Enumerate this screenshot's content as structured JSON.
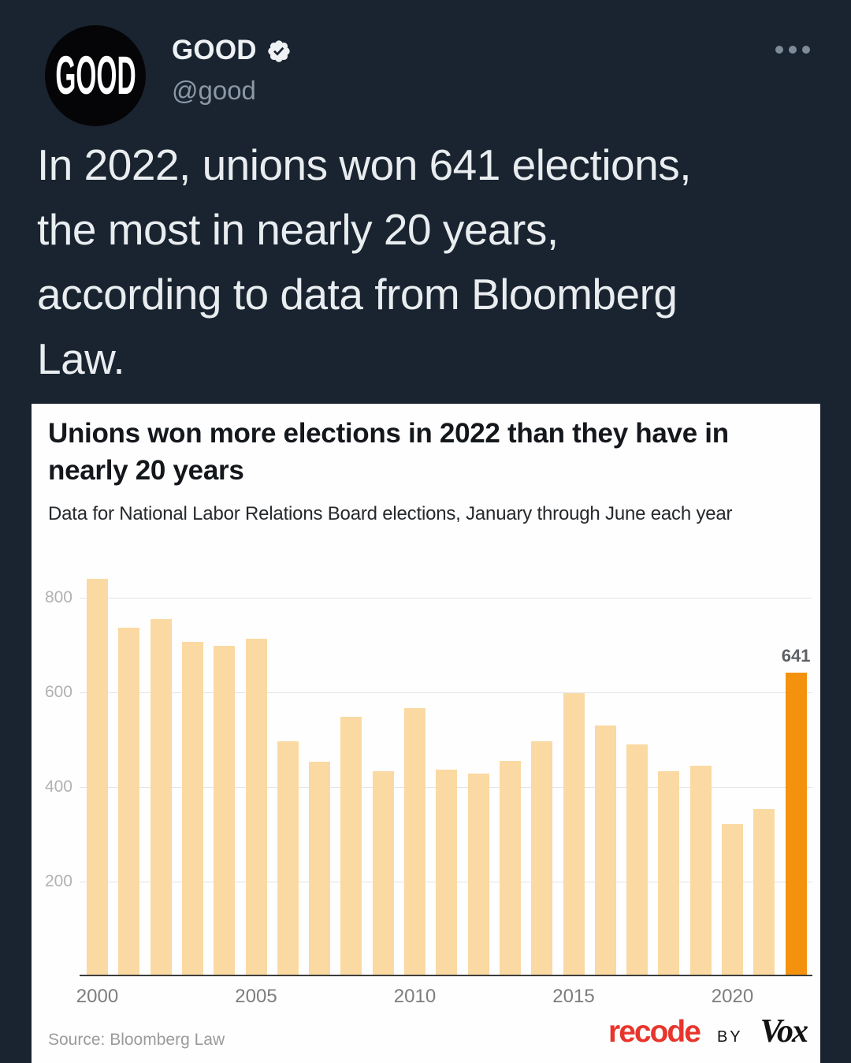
{
  "header": {
    "avatar_text": "GOOD",
    "display_name": "GOOD",
    "handle": "@good"
  },
  "tweet": {
    "lines": [
      "In 2022, unions won 641 elections,",
      "the most in nearly 20 years,",
      "according to data from Bloomberg",
      "Law."
    ]
  },
  "chart": {
    "title_lines": [
      "Unions won more elections in 2022 than they have in",
      "nearly 20 years"
    ],
    "subtitle": "Data for National Labor Relations Board elections, January through June each year",
    "source": "Source: Bloomberg Law",
    "logo_recode": "recode",
    "logo_by": "BY",
    "logo_vox": "Vox"
  },
  "chart_data": {
    "type": "bar",
    "title": "Unions won more elections in 2022 than they have in nearly 20 years",
    "subtitle": "Data for National Labor Relations Board elections, January through June each year",
    "source": "Source: Bloomberg Law",
    "categories": [
      "2000",
      "2001",
      "2002",
      "2003",
      "2004",
      "2005",
      "2006",
      "2007",
      "2008",
      "2009",
      "2010",
      "2011",
      "2012",
      "2013",
      "2014",
      "2015",
      "2016",
      "2017",
      "2018",
      "2019",
      "2020",
      "2021",
      "2022"
    ],
    "values": [
      840,
      737,
      755,
      706,
      699,
      714,
      497,
      454,
      549,
      434,
      566,
      437,
      428,
      455,
      497,
      599,
      530,
      490,
      434,
      445,
      321,
      353,
      641
    ],
    "highlight_category": "2022",
    "highlight_index": 22,
    "highlight_value_label": "641",
    "yticks": [
      800,
      600,
      400,
      200
    ],
    "xticks": [
      "2000",
      "2005",
      "2010",
      "2015",
      "2020"
    ],
    "ylim": [
      0,
      870
    ],
    "grid": true,
    "legend_position": "none",
    "bar_color": "#FBD9A2",
    "highlight_color": "#F4920E"
  },
  "colors": {
    "background": "#192430",
    "card_background": "#FEFEFE",
    "bar_beige": "#FBD9A2",
    "accent_orange": "#F4920E",
    "recode_red": "#E8352C",
    "text_primary": "#E9EDF0",
    "text_secondary": "#8B98A5"
  }
}
